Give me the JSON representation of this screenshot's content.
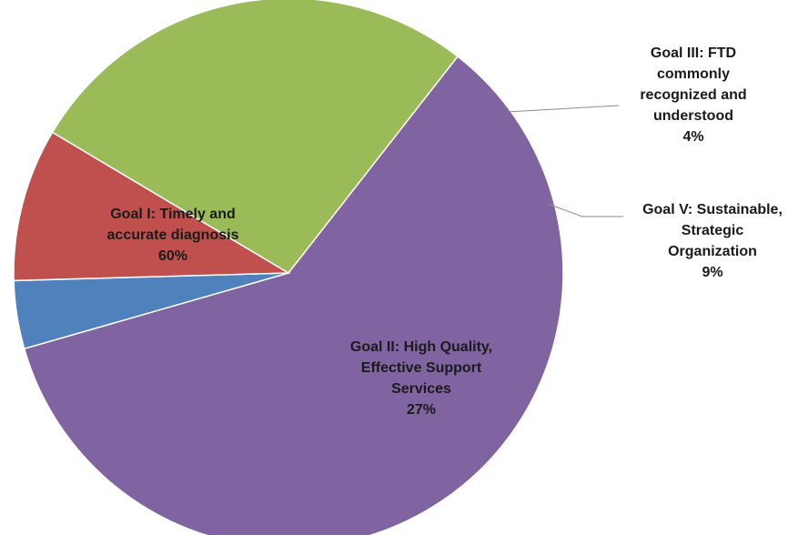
{
  "chart_data": {
    "type": "pie",
    "slices": [
      {
        "label_lines": [
          "Goal I: Timely and",
          "accurate diagnosis"
        ],
        "percent_label": "60%",
        "value": 60,
        "color": "#8064a2"
      },
      {
        "label_lines": [
          "Goal III: FTD",
          "commonly",
          "recognized and",
          "understood"
        ],
        "percent_label": "4%",
        "value": 4,
        "color": "#4f81bd"
      },
      {
        "label_lines": [
          "Goal V: Sustainable,",
          "Strategic",
          "Organization"
        ],
        "percent_label": "9%",
        "value": 9,
        "color": "#c0504d"
      },
      {
        "label_lines": [
          "Goal II: High Quality,",
          "Effective Support",
          "Services"
        ],
        "percent_label": "27%",
        "value": 27,
        "color": "#9bbb59"
      }
    ],
    "legend": "none"
  }
}
